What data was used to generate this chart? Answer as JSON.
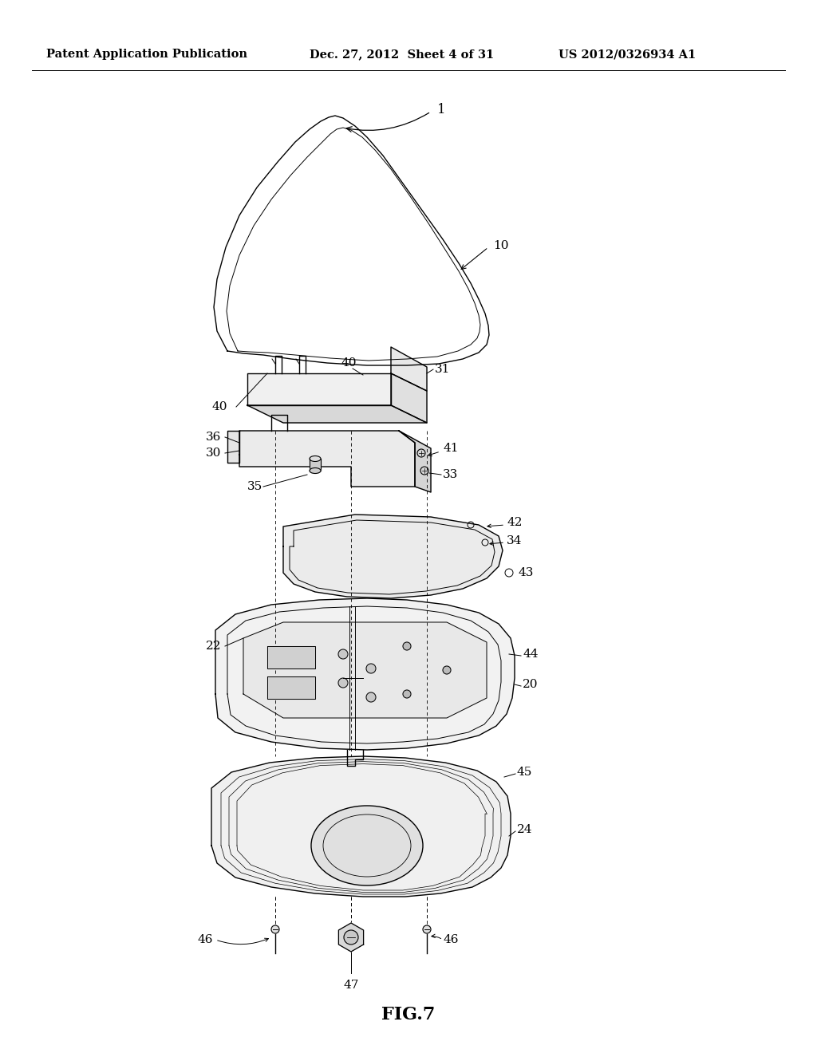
{
  "title": "FIG.7",
  "header_left": "Patent Application Publication",
  "header_center": "Dec. 27, 2012  Sheet 4 of 31",
  "header_right": "US 2012/0326934 A1",
  "bg_color": "#ffffff",
  "line_color": "#000000",
  "header_fontsize": 10.5,
  "title_fontsize": 16,
  "label_fontsize": 11
}
